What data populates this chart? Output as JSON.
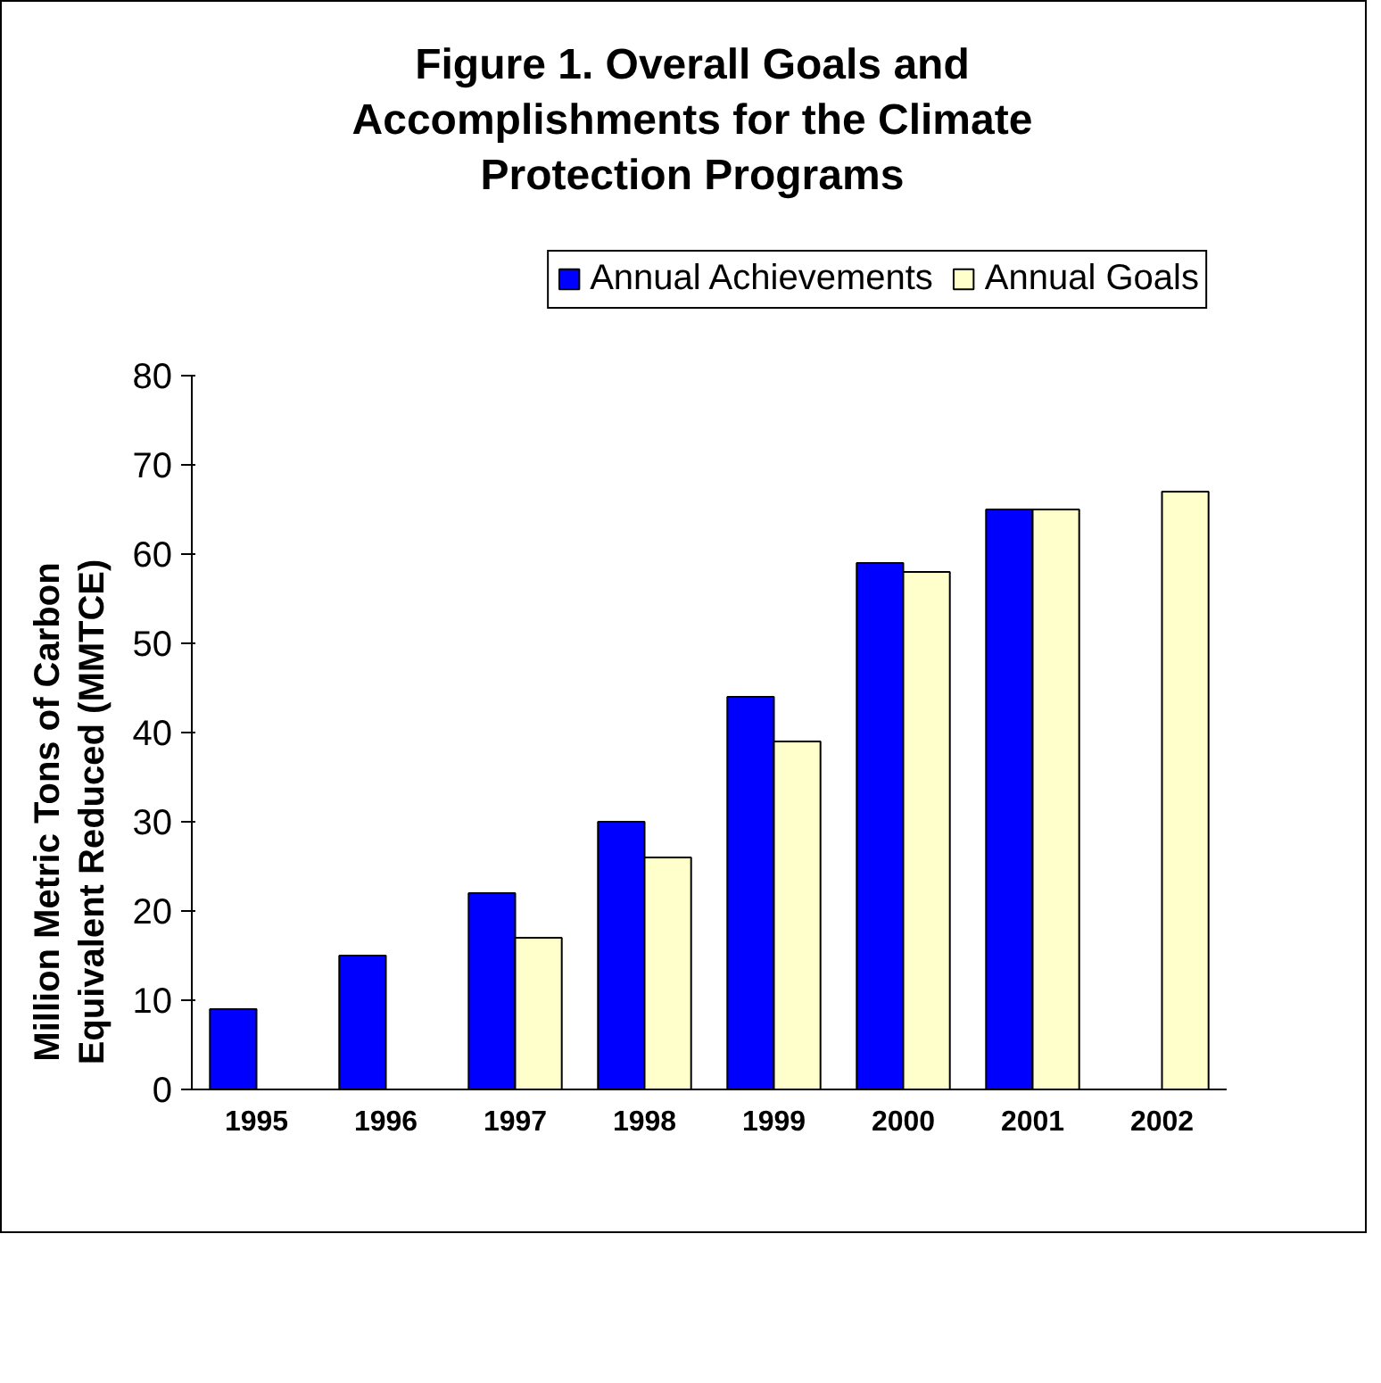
{
  "chart_data": {
    "type": "bar",
    "title": "Figure 1. Overall Goals and Accomplishments for the Climate Protection Programs",
    "ylabel": "Million Metric Tons of Carbon Equivalent Reduced (MMTCE)",
    "categories": [
      "1995",
      "1996",
      "1997",
      "1998",
      "1999",
      "2000",
      "2001",
      "2002"
    ],
    "series": [
      {
        "name": "Annual Achievements",
        "color": "#0000ff",
        "values": [
          9,
          15,
          22,
          30,
          44,
          59,
          65,
          null
        ]
      },
      {
        "name": "Annual Goals",
        "color": "#ffffcc",
        "values": [
          null,
          null,
          17,
          26,
          39,
          58,
          65,
          67
        ]
      }
    ],
    "ylim": [
      0,
      80
    ],
    "yticks": [
      0,
      10,
      20,
      30,
      40,
      50,
      60,
      70,
      80
    ],
    "grid": false,
    "legend": "top"
  }
}
